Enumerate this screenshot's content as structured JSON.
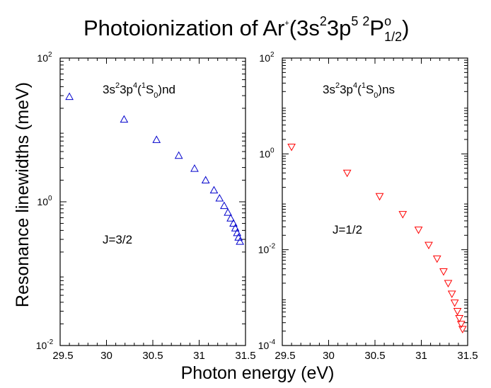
{
  "figure": {
    "title_main": "Photoionization of Ar",
    "title_sup1": "+",
    "title_paren_open": "(3s",
    "title_sup2": "2",
    "title_3p": "3p",
    "title_sup3": "5",
    "title_sup4": "2",
    "title_P": "P",
    "title_sup5": "o",
    "title_sub": "1/2",
    "title_close": ")",
    "xlabel": "Photon energy (eV)",
    "ylabel": "Resonance linewidths (meV)"
  },
  "chart_data": [
    {
      "type": "scatter",
      "panel": "left",
      "xlim": [
        29.5,
        31.5
      ],
      "ylim": [
        0.01,
        100
      ],
      "yscale": "log",
      "x_ticks": [
        29.5,
        30,
        30.5,
        31,
        31.5
      ],
      "x_tick_labels": [
        "29.5",
        "30",
        "30.5",
        "31",
        "31.5"
      ],
      "y_ticks": [
        0.01,
        1,
        100
      ],
      "y_tick_labels": [
        {
          "base": "10",
          "exp": "-2"
        },
        {
          "base": "10",
          "exp": "0"
        },
        {
          "base": "10",
          "exp": "2"
        }
      ],
      "annotation_series": {
        "pre": "3s",
        "s1": "2",
        "mid": "3p",
        "s2": "4",
        "open": "(",
        "s3": "1",
        "S": "S",
        "sub": "0",
        "post": ")nd"
      },
      "annotation_J": "J=3/2",
      "marker": "triangle-up",
      "color": "#0000cc",
      "x": [
        29.6,
        30.19,
        30.54,
        30.78,
        30.95,
        31.07,
        31.16,
        31.22,
        31.27,
        31.31,
        31.34,
        31.37,
        31.39,
        31.41,
        31.425,
        31.44
      ],
      "y": [
        29,
        14,
        7.3,
        4.4,
        2.9,
        2.0,
        1.45,
        1.12,
        0.88,
        0.71,
        0.59,
        0.5,
        0.43,
        0.37,
        0.32,
        0.28
      ]
    },
    {
      "type": "scatter",
      "panel": "right",
      "xlim": [
        29.5,
        31.5
      ],
      "ylim": [
        0.0001,
        100
      ],
      "yscale": "log",
      "x_ticks": [
        29.5,
        30,
        30.5,
        31,
        31.5
      ],
      "x_tick_labels": [
        "29.5",
        "30",
        "30.5",
        "31",
        "31.5"
      ],
      "y_ticks": [
        0.0001,
        0.01,
        1,
        100
      ],
      "y_tick_labels": [
        {
          "base": "10",
          "exp": "-4"
        },
        {
          "base": "10",
          "exp": "-2"
        },
        {
          "base": "10",
          "exp": "0"
        },
        {
          "base": "10",
          "exp": "2"
        }
      ],
      "annotation_series": {
        "pre": "3s",
        "s1": "2",
        "mid": "3p",
        "s2": "4",
        "open": "(",
        "s3": "1",
        "S": "S",
        "sub": "0",
        "post": ")ns"
      },
      "annotation_J": "J=1/2",
      "marker": "triangle-down",
      "color": "#ff0000",
      "x": [
        29.6,
        30.2,
        30.55,
        30.8,
        30.97,
        31.08,
        31.17,
        31.24,
        31.29,
        31.33,
        31.36,
        31.39,
        31.41,
        31.43,
        31.445
      ],
      "y": [
        1.4,
        0.4,
        0.13,
        0.055,
        0.026,
        0.0125,
        0.0065,
        0.0035,
        0.002,
        0.0012,
        0.00078,
        0.00052,
        0.00037,
        0.00028,
        0.00022
      ]
    }
  ]
}
